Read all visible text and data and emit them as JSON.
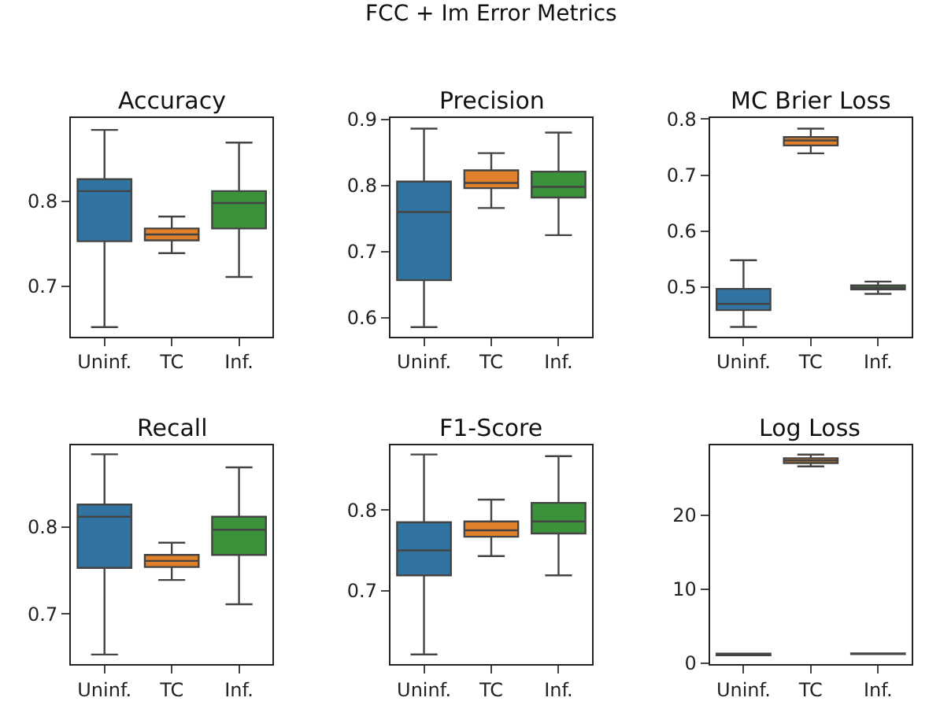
{
  "chart_data": [
    {
      "type": "box",
      "title": "Accuracy",
      "annotations": [
        "FCC + Im Error Metrics"
      ],
      "categories": [
        "Uninf.",
        "TC",
        "Inf."
      ],
      "colors": [
        "#3274a1",
        "#e1812c",
        "#3a923a"
      ],
      "ylim": [
        0.641,
        0.898
      ],
      "yticks": [
        0.7,
        0.8
      ],
      "boxes": [
        {
          "low": 0.652,
          "q1": 0.753,
          "median": 0.812,
          "q3": 0.826,
          "high": 0.884
        },
        {
          "low": 0.739,
          "q1": 0.754,
          "median": 0.761,
          "q3": 0.768,
          "high": 0.782
        },
        {
          "low": 0.711,
          "q1": 0.768,
          "median": 0.798,
          "q3": 0.812,
          "high": 0.869
        }
      ]
    },
    {
      "type": "box",
      "title": "Precision",
      "categories": [
        "Uninf.",
        "TC",
        "Inf."
      ],
      "colors": [
        "#3274a1",
        "#e1812c",
        "#3a923a"
      ],
      "ylim": [
        0.572,
        0.902
      ],
      "yticks": [
        0.6,
        0.7,
        0.8,
        0.9
      ],
      "boxes": [
        {
          "low": 0.586,
          "q1": 0.657,
          "median": 0.76,
          "q3": 0.806,
          "high": 0.886
        },
        {
          "low": 0.766,
          "q1": 0.796,
          "median": 0.804,
          "q3": 0.823,
          "high": 0.849
        },
        {
          "low": 0.725,
          "q1": 0.782,
          "median": 0.798,
          "q3": 0.821,
          "high": 0.88
        }
      ]
    },
    {
      "type": "box",
      "title": "MC Brier Loss",
      "categories": [
        "Uninf.",
        "TC",
        "Inf."
      ],
      "colors": [
        "#3274a1",
        "#e1812c",
        "#3a923a"
      ],
      "ylim": [
        0.412,
        0.802
      ],
      "yticks": [
        0.5,
        0.6,
        0.7,
        0.8
      ],
      "boxes": [
        {
          "low": 0.429,
          "q1": 0.459,
          "median": 0.47,
          "q3": 0.497,
          "high": 0.548
        },
        {
          "low": 0.739,
          "q1": 0.753,
          "median": 0.762,
          "q3": 0.768,
          "high": 0.783
        },
        {
          "low": 0.488,
          "q1": 0.496,
          "median": 0.499,
          "q3": 0.503,
          "high": 0.51
        }
      ]
    },
    {
      "type": "box",
      "title": "Recall",
      "categories": [
        "Uninf.",
        "TC",
        "Inf."
      ],
      "colors": [
        "#3274a1",
        "#e1812c",
        "#3a923a"
      ],
      "ylim": [
        0.642,
        0.894
      ],
      "yticks": [
        0.7,
        0.8
      ],
      "boxes": [
        {
          "low": 0.653,
          "q1": 0.753,
          "median": 0.812,
          "q3": 0.826,
          "high": 0.884
        },
        {
          "low": 0.739,
          "q1": 0.754,
          "median": 0.761,
          "q3": 0.768,
          "high": 0.782
        },
        {
          "low": 0.711,
          "q1": 0.768,
          "median": 0.797,
          "q3": 0.812,
          "high": 0.869
        }
      ]
    },
    {
      "type": "box",
      "title": "F1-Score",
      "categories": [
        "Uninf.",
        "TC",
        "Inf."
      ],
      "colors": [
        "#3274a1",
        "#e1812c",
        "#3a923a"
      ],
      "ylim": [
        0.609,
        0.88
      ],
      "yticks": [
        0.7,
        0.8
      ],
      "boxes": [
        {
          "low": 0.621,
          "q1": 0.719,
          "median": 0.75,
          "q3": 0.785,
          "high": 0.869
        },
        {
          "low": 0.743,
          "q1": 0.767,
          "median": 0.775,
          "q3": 0.786,
          "high": 0.813
        },
        {
          "low": 0.719,
          "q1": 0.771,
          "median": 0.786,
          "q3": 0.809,
          "high": 0.867
        }
      ]
    },
    {
      "type": "box",
      "title": "Log Loss",
      "categories": [
        "Uninf.",
        "TC",
        "Inf."
      ],
      "colors": [
        "#3274a1",
        "#e1812c",
        "#3a923a"
      ],
      "ylim": [
        -0.1,
        29.4
      ],
      "yticks": [
        0,
        10,
        20
      ],
      "boxes": [
        {
          "low": 1.1,
          "q1": 1.1,
          "median": 1.2,
          "q3": 1.3,
          "high": 1.3
        },
        {
          "low": 26.6,
          "q1": 27.05,
          "median": 27.4,
          "q3": 27.7,
          "high": 28.2
        },
        {
          "low": 1.25,
          "q1": 1.25,
          "median": 1.3,
          "q3": 1.35,
          "high": 1.35
        }
      ]
    }
  ]
}
